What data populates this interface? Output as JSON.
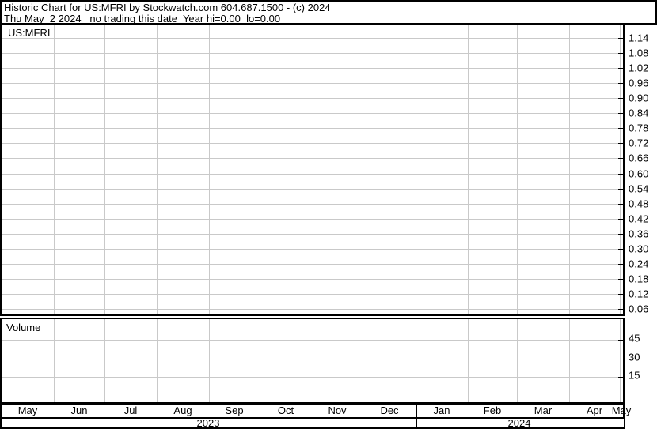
{
  "header": {
    "title": "Historic Chart for US:MFRI by Stockwatch.com 604.687.1500 - (c) 2024",
    "subtitle": "Thu May  2 2024   no trading this date  Year hi=0.00  lo=0.00"
  },
  "price_panel": {
    "symbol_label": "US:MFRI"
  },
  "volume_panel": {
    "label": "Volume"
  },
  "colors": {
    "background": "#ffffff",
    "text": "#000000",
    "border": "#000000",
    "gridline": "#c9c9c9"
  },
  "chart_data": {
    "type": "line",
    "title": "Historic Chart for US:MFRI",
    "symbol": "US:MFRI",
    "note": "No trading this date - price and volume panes are empty (Year hi=0.00 lo=0.00)",
    "grid": true,
    "series": [],
    "volume_series": [],
    "price_axis": {
      "side": "right",
      "ticks": [
        "1.14",
        "1.08",
        "1.02",
        "0.96",
        "0.90",
        "0.84",
        "0.78",
        "0.72",
        "0.66",
        "0.60",
        "0.54",
        "0.48",
        "0.42",
        "0.36",
        "0.30",
        "0.24",
        "0.18",
        "0.12",
        "0.06"
      ],
      "tick_step": 0.06
    },
    "volume_axis": {
      "side": "right",
      "ticks": [
        "45",
        "30",
        "15"
      ],
      "tick_step": 15
    },
    "x_axis": {
      "month_labels": [
        "May",
        "Jun",
        "Jul",
        "Aug",
        "Sep",
        "Oct",
        "Nov",
        "Dec",
        "Jan",
        "Feb",
        "Mar",
        "Apr",
        "May"
      ],
      "month_days": [
        31,
        30,
        31,
        31,
        30,
        31,
        30,
        31,
        31,
        29,
        31,
        30,
        2
      ],
      "year_labels": [
        "2023",
        "2024"
      ],
      "year_split_after_month_index": 7
    }
  }
}
